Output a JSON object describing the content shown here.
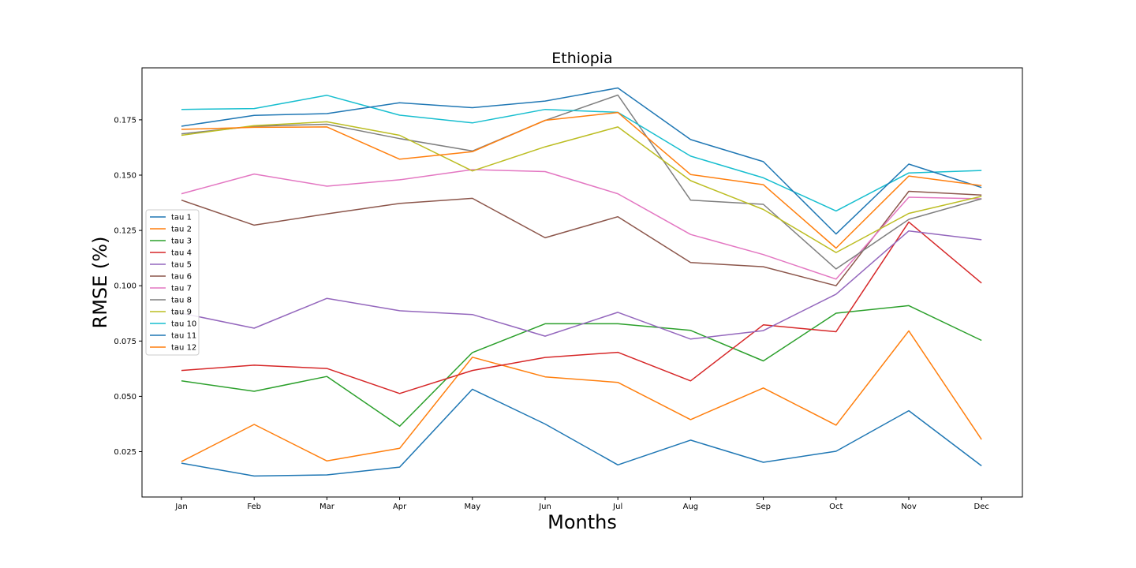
{
  "chart_data": {
    "type": "line",
    "title": "Ethiopia",
    "xlabel": "Months",
    "ylabel": "RMSE (%)",
    "categories": [
      "Jan",
      "Feb",
      "Mar",
      "Apr",
      "May",
      "Jun",
      "Jul",
      "Aug",
      "Sep",
      "Oct",
      "Nov",
      "Dec"
    ],
    "ylim": [
      0.0045,
      0.1985
    ],
    "yticks": [
      0.025,
      0.05,
      0.075,
      0.1,
      0.125,
      0.15,
      0.175
    ],
    "ytick_labels": [
      "0.025",
      "0.050",
      "0.075",
      "0.100",
      "0.125",
      "0.150",
      "0.175"
    ],
    "grid": false,
    "legend_position": "center-left",
    "series": [
      {
        "name": "tau 1",
        "color": "#1f77b4",
        "values": [
          0.0198,
          0.014,
          0.0145,
          0.018,
          0.0532,
          0.0375,
          0.019,
          0.0302,
          0.0202,
          0.0252,
          0.0435,
          0.0186
        ]
      },
      {
        "name": "tau 2",
        "color": "#ff7f0e",
        "values": [
          0.0205,
          0.0373,
          0.0208,
          0.0265,
          0.0677,
          0.0588,
          0.0563,
          0.0395,
          0.0538,
          0.037,
          0.0796,
          0.0305
        ]
      },
      {
        "name": "tau 3",
        "color": "#2ca02c",
        "values": [
          0.057,
          0.0523,
          0.059,
          0.0365,
          0.0698,
          0.0828,
          0.0828,
          0.0798,
          0.066,
          0.0876,
          0.091,
          0.0753
        ]
      },
      {
        "name": "tau 4",
        "color": "#d62728",
        "values": [
          0.0617,
          0.0641,
          0.0626,
          0.0513,
          0.0617,
          0.0676,
          0.0699,
          0.057,
          0.0823,
          0.0792,
          0.1288,
          0.1012
        ]
      },
      {
        "name": "tau 5",
        "color": "#9467bd",
        "values": [
          0.0876,
          0.0808,
          0.0943,
          0.0887,
          0.087,
          0.0772,
          0.088,
          0.0759,
          0.0797,
          0.0962,
          0.1248,
          0.1208
        ]
      },
      {
        "name": "tau 6",
        "color": "#8c564b",
        "values": [
          0.1387,
          0.1274,
          0.1325,
          0.1372,
          0.1395,
          0.1217,
          0.1312,
          0.1105,
          0.1086,
          0.1,
          0.1427,
          0.141
        ]
      },
      {
        "name": "tau 7",
        "color": "#e377c2",
        "values": [
          0.1416,
          0.1505,
          0.145,
          0.1479,
          0.1525,
          0.1516,
          0.1416,
          0.1232,
          0.1141,
          0.103,
          0.14,
          0.1393
        ]
      },
      {
        "name": "tau 8",
        "color": "#7f7f7f",
        "values": [
          0.1687,
          0.1721,
          0.173,
          0.1665,
          0.1609,
          0.1747,
          0.1862,
          0.1387,
          0.1368,
          0.1076,
          0.13,
          0.1393
        ]
      },
      {
        "name": "tau 9",
        "color": "#bcbd22",
        "values": [
          0.168,
          0.1724,
          0.1741,
          0.168,
          0.1519,
          0.1628,
          0.1718,
          0.1475,
          0.1345,
          0.115,
          0.1327,
          0.1404
        ]
      },
      {
        "name": "tau 10",
        "color": "#17becf",
        "values": [
          0.1797,
          0.1801,
          0.1861,
          0.1771,
          0.1736,
          0.1797,
          0.1784,
          0.1586,
          0.1488,
          0.1338,
          0.151,
          0.1521
        ]
      },
      {
        "name": "tau 11",
        "color": "#1f77b4",
        "values": [
          0.1721,
          0.177,
          0.1778,
          0.1827,
          0.1805,
          0.1835,
          0.1894,
          0.1661,
          0.1561,
          0.1234,
          0.155,
          0.1444
        ]
      },
      {
        "name": "tau 12",
        "color": "#ff7f0e",
        "values": [
          0.1707,
          0.1716,
          0.1718,
          0.1572,
          0.1606,
          0.1748,
          0.1783,
          0.1503,
          0.1457,
          0.117,
          0.1496,
          0.1453
        ]
      }
    ]
  }
}
